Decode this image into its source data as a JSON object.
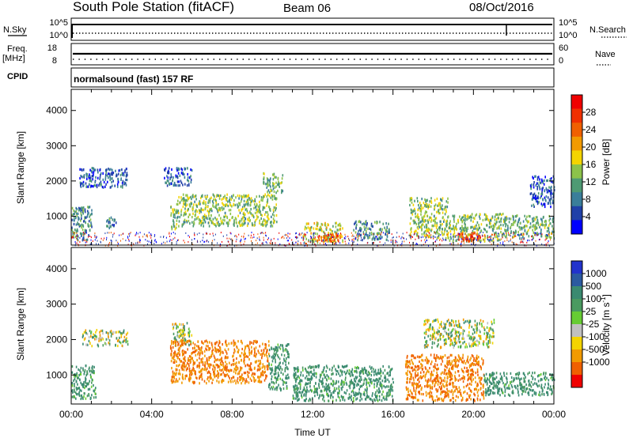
{
  "header": {
    "station": "South Pole Station (fitACF)",
    "beam": "Beam 06",
    "date": "08/Oct/2016"
  },
  "top_panels": {
    "nsky_label": "N.Sky",
    "nsky_ticks": [
      "10^5",
      "10^0"
    ],
    "nsearch_label": "N.Search",
    "nsearch_ticks": [
      "10^5",
      "10^0"
    ],
    "freq_label_1": "Freq.",
    "freq_label_2": "[MHz]",
    "freq_ticks": [
      "18",
      "8"
    ],
    "nave_label": "Nave",
    "nave_ticks": [
      "60",
      "0"
    ],
    "cpid_label": "CPID",
    "cpid_text": "normalsound (fast) 157 RF"
  },
  "chart_data": [
    {
      "type": "heatmap",
      "title": "",
      "xlabel": "",
      "ylabel": "Slant Range [km]",
      "ylim": [
        180,
        4600
      ],
      "yticks": [
        1000,
        2000,
        3000,
        4000
      ],
      "xlim_hours": [
        0,
        24
      ],
      "colorbar": {
        "label": "Power [dB]",
        "ticks": [
          "4",
          "8",
          "12",
          "16",
          "20",
          "24",
          "28"
        ],
        "colors": [
          "#0000ff",
          "#2040a8",
          "#3a7e9a",
          "#4e9a73",
          "#8cc24a",
          "#f4d400",
          "#f29a00",
          "#f06000",
          "#f03000",
          "#f00000"
        ]
      },
      "regions": [
        {
          "t0": 0.0,
          "t1": 1.0,
          "r0": 350,
          "r1": 1300,
          "power_dB": 10
        },
        {
          "t0": 0.4,
          "t1": 2.8,
          "r0": 1850,
          "r1": 2400,
          "power_dB": 6
        },
        {
          "t0": 1.7,
          "t1": 2.2,
          "r0": 650,
          "r1": 1000,
          "power_dB": 8
        },
        {
          "t0": 4.6,
          "t1": 6.0,
          "r0": 1900,
          "r1": 2400,
          "power_dB": 6
        },
        {
          "t0": 4.9,
          "t1": 5.2,
          "r0": 650,
          "r1": 1400,
          "power_dB": 14
        },
        {
          "t0": 5.2,
          "t1": 10.2,
          "r0": 750,
          "r1": 1650,
          "power_dB": 14
        },
        {
          "t0": 9.5,
          "t1": 10.5,
          "r0": 1700,
          "r1": 2250,
          "power_dB": 12
        },
        {
          "t0": 11.5,
          "t1": 13.5,
          "r0": 280,
          "r1": 850,
          "power_dB": 16
        },
        {
          "t0": 12.2,
          "t1": 13.3,
          "r0": 320,
          "r1": 520,
          "power_dB": 26
        },
        {
          "t0": 14.0,
          "t1": 15.8,
          "r0": 350,
          "r1": 900,
          "power_dB": 10
        },
        {
          "t0": 16.8,
          "t1": 18.7,
          "r0": 420,
          "r1": 1550,
          "power_dB": 14
        },
        {
          "t0": 18.6,
          "t1": 21.5,
          "r0": 320,
          "r1": 1100,
          "power_dB": 14
        },
        {
          "t0": 19.2,
          "t1": 20.3,
          "r0": 320,
          "r1": 560,
          "power_dB": 26
        },
        {
          "t0": 21.5,
          "t1": 24.0,
          "r0": 400,
          "r1": 1050,
          "power_dB": 12
        },
        {
          "t0": 22.8,
          "t1": 24.0,
          "r0": 1300,
          "r1": 2200,
          "power_dB": 6
        }
      ]
    },
    {
      "type": "heatmap",
      "title": "",
      "xlabel": "Time UT",
      "ylabel": "Slant Range [km]",
      "ylim": [
        180,
        4600
      ],
      "yticks": [
        1000,
        2000,
        3000,
        4000
      ],
      "xlim_hours": [
        0,
        24
      ],
      "xticks": [
        "00:00",
        "04:00",
        "08:00",
        "12:00",
        "16:00",
        "20:00",
        "00:00"
      ],
      "colorbar": {
        "label": "Velocity [m s^-1]",
        "ticks": [
          "1000",
          "500",
          "100",
          "25",
          "-25",
          "-100",
          "-500",
          "-1000"
        ],
        "colors": [
          "#2233cc",
          "#2b5aa0",
          "#3a8a70",
          "#4a9a60",
          "#66cc33",
          "#c0c0c0",
          "#f4d400",
          "#f29a00",
          "#f06000",
          "#f00000"
        ]
      },
      "regions": [
        {
          "t0": 0.0,
          "t1": 1.2,
          "r0": 350,
          "r1": 1300,
          "velocity_ms": 100
        },
        {
          "t0": 0.5,
          "t1": 2.8,
          "r0": 1850,
          "r1": 2300,
          "velocity_ms": 0
        },
        {
          "t0": 5.0,
          "t1": 6.0,
          "r0": 1850,
          "r1": 2500,
          "velocity_ms": 0
        },
        {
          "t0": 4.9,
          "t1": 9.8,
          "r0": 800,
          "r1": 2000,
          "velocity_ms": -300
        },
        {
          "t0": 9.8,
          "t1": 10.8,
          "r0": 600,
          "r1": 1900,
          "velocity_ms": 100
        },
        {
          "t0": 11.0,
          "t1": 16.0,
          "r0": 300,
          "r1": 1300,
          "velocity_ms": 100
        },
        {
          "t0": 16.6,
          "t1": 20.5,
          "r0": 300,
          "r1": 1600,
          "velocity_ms": -300
        },
        {
          "t0": 20.5,
          "t1": 24.0,
          "r0": 450,
          "r1": 1100,
          "velocity_ms": 100
        },
        {
          "t0": 17.5,
          "t1": 21.0,
          "r0": 1800,
          "r1": 2600,
          "velocity_ms": 0
        }
      ]
    }
  ]
}
